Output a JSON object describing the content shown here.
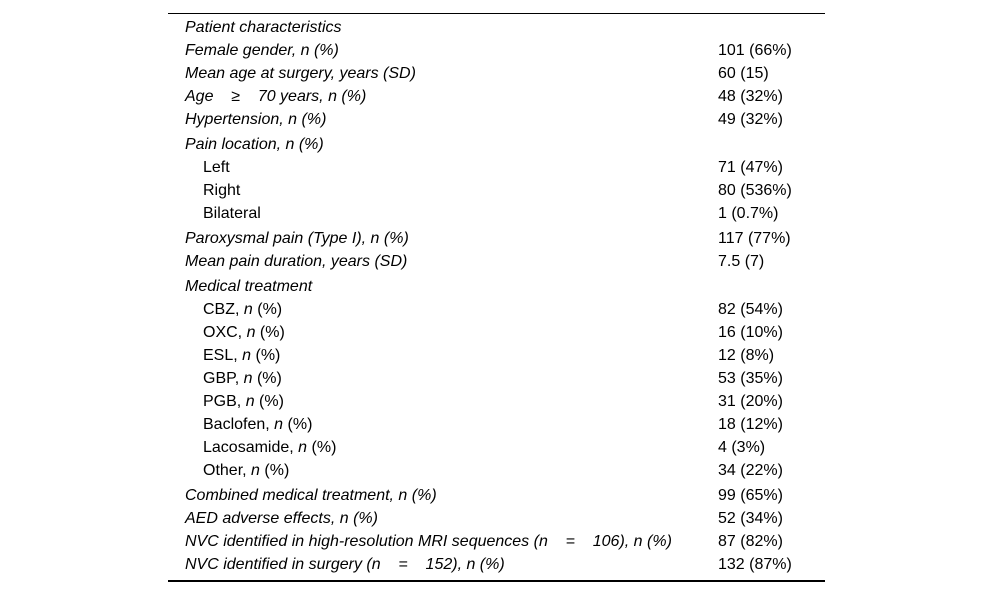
{
  "page": {
    "background_color": "#ffffff",
    "text_color": "#000000",
    "rule_color": "#000000"
  },
  "table": {
    "title": "Patient characteristics",
    "rows": [
      {
        "name": "patient-characteristics",
        "indent": 0,
        "gap": false,
        "value": "",
        "parts": [
          {
            "t": "Patient characteristics",
            "i": true
          }
        ]
      },
      {
        "name": "female-gender",
        "indent": 0,
        "gap": false,
        "value": "101 (66%)",
        "parts": [
          {
            "t": "Female gender, n (%)",
            "i": true
          }
        ]
      },
      {
        "name": "mean-age-at-surgery",
        "indent": 0,
        "gap": false,
        "value": "60 (15)",
        "parts": [
          {
            "t": "Mean age at surgery, years (SD)",
            "i": true
          }
        ]
      },
      {
        "name": "age-70-or-more",
        "indent": 0,
        "gap": false,
        "value": "48 (32%)",
        "parts": [
          {
            "t": "Age    ≥    70 years, n (%)",
            "i": true
          }
        ]
      },
      {
        "name": "hypertension",
        "indent": 0,
        "gap": false,
        "value": "49 (32%)",
        "parts": [
          {
            "t": "Hypertension, n (%)",
            "i": true
          }
        ]
      },
      {
        "name": "pain-location",
        "indent": 0,
        "gap": true,
        "value": "",
        "parts": [
          {
            "t": "Pain location, n (%)",
            "i": true
          }
        ]
      },
      {
        "name": "pain-location-left",
        "indent": 1,
        "gap": false,
        "value": "71 (47%)",
        "parts": [
          {
            "t": "Left",
            "i": false
          }
        ]
      },
      {
        "name": "pain-location-right",
        "indent": 1,
        "gap": false,
        "value": "80 (536%)",
        "parts": [
          {
            "t": "Right",
            "i": false
          }
        ]
      },
      {
        "name": "pain-location-bilateral",
        "indent": 1,
        "gap": false,
        "value": "1 (0.7%)",
        "parts": [
          {
            "t": "Bilateral",
            "i": false
          }
        ]
      },
      {
        "name": "paroxysmal-pain",
        "indent": 0,
        "gap": true,
        "value": "117 (77%)",
        "parts": [
          {
            "t": "Paroxysmal pain (Type I), n (%)",
            "i": true
          }
        ]
      },
      {
        "name": "mean-pain-duration",
        "indent": 0,
        "gap": false,
        "value": "7.5 (7)",
        "parts": [
          {
            "t": "Mean pain duration, years (SD)",
            "i": true
          }
        ]
      },
      {
        "name": "medical-treatment",
        "indent": 0,
        "gap": true,
        "value": "",
        "parts": [
          {
            "t": "Medical treatment",
            "i": true
          }
        ]
      },
      {
        "name": "treatment-cbz",
        "indent": 1,
        "gap": false,
        "value": "82 (54%)",
        "parts": [
          {
            "t": "CBZ, ",
            "i": false
          },
          {
            "t": "n",
            "i": true
          },
          {
            "t": " (%)",
            "i": false
          }
        ]
      },
      {
        "name": "treatment-oxc",
        "indent": 1,
        "gap": false,
        "value": "16 (10%)",
        "parts": [
          {
            "t": "OXC, ",
            "i": false
          },
          {
            "t": "n",
            "i": true
          },
          {
            "t": " (%)",
            "i": false
          }
        ]
      },
      {
        "name": "treatment-esl",
        "indent": 1,
        "gap": false,
        "value": "12 (8%)",
        "parts": [
          {
            "t": "ESL, ",
            "i": false
          },
          {
            "t": "n",
            "i": true
          },
          {
            "t": " (%)",
            "i": false
          }
        ]
      },
      {
        "name": "treatment-gbp",
        "indent": 1,
        "gap": false,
        "value": "53 (35%)",
        "parts": [
          {
            "t": "GBP, ",
            "i": false
          },
          {
            "t": "n",
            "i": true
          },
          {
            "t": " (%)",
            "i": false
          }
        ]
      },
      {
        "name": "treatment-pgb",
        "indent": 1,
        "gap": false,
        "value": "31 (20%)",
        "parts": [
          {
            "t": "PGB, ",
            "i": false
          },
          {
            "t": "n",
            "i": true
          },
          {
            "t": " (%)",
            "i": false
          }
        ]
      },
      {
        "name": "treatment-baclofen",
        "indent": 1,
        "gap": false,
        "value": "18 (12%)",
        "parts": [
          {
            "t": "Baclofen, ",
            "i": false
          },
          {
            "t": "n",
            "i": true
          },
          {
            "t": " (%)",
            "i": false
          }
        ]
      },
      {
        "name": "treatment-lacosamide",
        "indent": 1,
        "gap": false,
        "value": "4 (3%)",
        "parts": [
          {
            "t": "Lacosamide, ",
            "i": false
          },
          {
            "t": "n",
            "i": true
          },
          {
            "t": " (%)",
            "i": false
          }
        ]
      },
      {
        "name": "treatment-other",
        "indent": 1,
        "gap": false,
        "value": "34 (22%)",
        "parts": [
          {
            "t": "Other, ",
            "i": false
          },
          {
            "t": "n",
            "i": true
          },
          {
            "t": " (%)",
            "i": false
          }
        ]
      },
      {
        "name": "combined-medical-treatment",
        "indent": 0,
        "gap": true,
        "value": "99 (65%)",
        "parts": [
          {
            "t": "Combined medical treatment, n (%)",
            "i": true
          }
        ]
      },
      {
        "name": "aed-adverse-effects",
        "indent": 0,
        "gap": false,
        "value": "52 (34%)",
        "parts": [
          {
            "t": "AED adverse effects, n (%)",
            "i": true
          }
        ]
      },
      {
        "name": "nvc-identified-mri",
        "indent": 0,
        "gap": false,
        "value": "87 (82%)",
        "parts": [
          {
            "t": "NVC identified in high-resolution MRI sequences (n    =    106), n (%)",
            "i": true
          }
        ]
      },
      {
        "name": "nvc-identified-surgery",
        "indent": 0,
        "gap": false,
        "value": "132 (87%)",
        "parts": [
          {
            "t": "NVC identified in surgery (n    =    152), n (%)",
            "i": true
          }
        ]
      }
    ]
  }
}
